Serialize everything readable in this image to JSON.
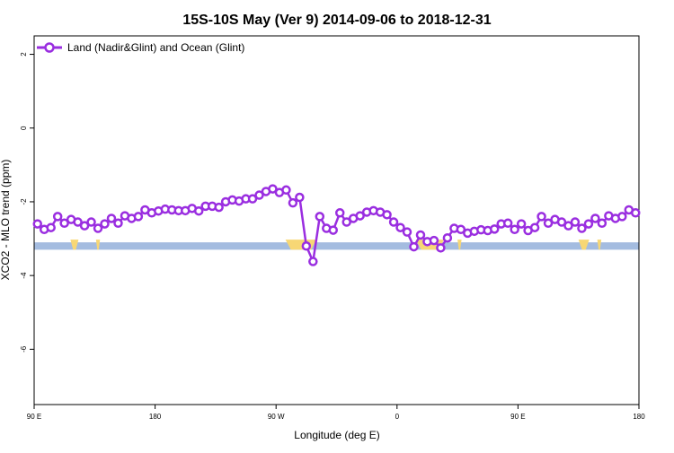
{
  "chart_data": {
    "type": "line",
    "title": "15S-10S May (Ver 9)   2014-09-06 to 2018-12-31",
    "xlabel": "Longitude (deg E)",
    "ylabel": "XCO2 - MLO trend (ppm)",
    "x_ticks": [
      {
        "value": 90,
        "label": "90 E"
      },
      {
        "value": 180,
        "label": "180"
      },
      {
        "value": 270,
        "label": "90 W"
      },
      {
        "value": 360,
        "label": "0"
      },
      {
        "value": 450,
        "label": "90 E"
      },
      {
        "value": 540,
        "label": "180"
      }
    ],
    "y_ticks": [
      {
        "value": 2,
        "label": "2"
      },
      {
        "value": 0,
        "label": "0"
      },
      {
        "value": -2,
        "label": "-2"
      },
      {
        "value": -4,
        "label": "-4"
      },
      {
        "value": -6,
        "label": "-6"
      }
    ],
    "xlim": [
      90,
      540
    ],
    "ylim": [
      -7.5,
      2.5
    ],
    "grid": false,
    "legend_position": "top-left",
    "series": [
      {
        "name": "Land (Nadir&Glint) and Ocean (Glint)",
        "color": "#9a2ee0",
        "marker": "open-circle",
        "x": [
          92.5,
          97.5,
          102.5,
          107.5,
          112.5,
          117.5,
          122.5,
          127.5,
          132.5,
          137.5,
          142.5,
          147.5,
          152.5,
          157.5,
          162.5,
          167.5,
          172.5,
          177.5,
          182.5,
          187.5,
          192.5,
          197.5,
          202.5,
          207.5,
          212.5,
          217.5,
          222.5,
          227.5,
          232.5,
          237.5,
          242.5,
          247.5,
          252.5,
          257.5,
          262.5,
          267.5,
          272.5,
          277.5,
          282.5,
          287.5,
          292.5,
          297.5,
          302.5,
          307.5,
          312.5,
          317.5,
          322.5,
          327.5,
          332.5,
          337.5,
          342.5,
          347.5,
          352.5,
          357.5,
          362.5,
          367.5,
          372.5,
          377.5,
          382.5,
          387.5,
          392.5,
          397.5,
          402.5,
          407.5,
          412.5,
          417.5,
          422.5,
          427.5,
          432.5,
          437.5,
          442.5,
          447.5,
          452.5,
          457.5,
          462.5,
          467.5,
          472.5,
          477.5,
          482.5,
          487.5,
          492.5,
          497.5,
          502.5,
          507.5,
          512.5,
          517.5,
          522.5,
          527.5,
          532.5,
          537.5
        ],
        "y": [
          -2.6,
          -2.75,
          -2.7,
          -2.4,
          -2.58,
          -2.48,
          -2.55,
          -2.65,
          -2.55,
          -2.72,
          -2.6,
          -2.45,
          -2.58,
          -2.38,
          -2.45,
          -2.4,
          -2.22,
          -2.3,
          -2.25,
          -2.2,
          -2.22,
          -2.24,
          -2.24,
          -2.18,
          -2.25,
          -2.12,
          -2.12,
          -2.15,
          -2.0,
          -1.95,
          -1.98,
          -1.92,
          -1.92,
          -1.82,
          -1.72,
          -1.65,
          -1.75,
          -1.68,
          -2.03,
          -1.88,
          -3.2,
          -3.62,
          -2.4,
          -2.72,
          -2.77,
          -2.3,
          -2.55,
          -2.45,
          -2.38,
          -2.28,
          -2.24,
          -2.28,
          -2.35,
          -2.55,
          -2.7,
          -2.82,
          -3.22,
          -2.9,
          -3.08,
          -3.05,
          -3.25,
          -2.98,
          -2.72,
          -2.75,
          -2.85,
          -2.8,
          -2.76,
          -2.78,
          -2.74,
          -2.6,
          -2.58,
          -2.75,
          -2.6,
          -2.78,
          -2.7,
          -2.4,
          -2.58,
          -2.48,
          -2.55,
          -2.65,
          -2.55,
          -2.72,
          -2.6,
          -2.45,
          -2.58,
          -2.38,
          -2.45,
          -2.4,
          -2.22,
          -2.3
        ]
      }
    ],
    "coverage_band": {
      "y_range": [
        -3.3,
        -3.1
      ],
      "base_color": "#a4bce0",
      "fill_color": "#f7d775",
      "fills": [
        {
          "x_start": 117,
          "x_end": 123
        },
        {
          "x_start": 136,
          "x_end": 139
        },
        {
          "x_start": 277,
          "x_end": 300
        },
        {
          "x_start": 374,
          "x_end": 395
        },
        {
          "x_start": 405,
          "x_end": 408
        },
        {
          "x_start": 495,
          "x_end": 503
        },
        {
          "x_start": 509,
          "x_end": 512
        }
      ]
    }
  }
}
